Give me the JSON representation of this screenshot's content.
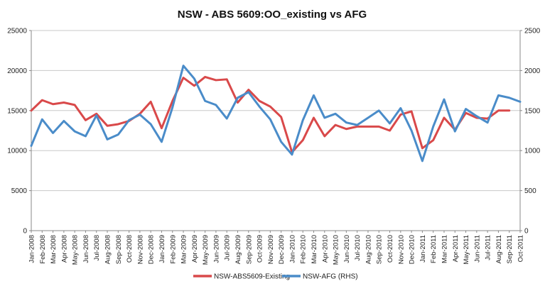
{
  "chart_data": {
    "type": "line",
    "title": "NSW - ABS 5609:OO_existing vs AFG",
    "xlabel": "",
    "ylabel": "",
    "grid": true,
    "legend_position": "bottom",
    "y_left": {
      "min": 0,
      "max": 25000,
      "ticks": [
        "0",
        "5000",
        "10000",
        "15000",
        "20000",
        "25000"
      ]
    },
    "y_right": {
      "min": 0,
      "max": 2500,
      "ticks": [
        "0",
        "500",
        "1000",
        "1500",
        "2000",
        "2500"
      ]
    },
    "categories": [
      "Jan-2008",
      "Feb-2008",
      "Mar-2008",
      "Apr-2008",
      "May-2008",
      "Jun-2008",
      "Jul-2008",
      "Aug-2008",
      "Sep-2008",
      "Oct-2008",
      "Nov-2008",
      "Dec-2008",
      "Jan-2009",
      "Feb-2009",
      "Mar-2009",
      "Apr-2009",
      "May-2009",
      "Jun-2009",
      "Jul-2009",
      "Aug-2009",
      "Sep-2009",
      "Oct-2009",
      "Nov-2009",
      "Dec-2009",
      "Jan-2010",
      "Feb-2010",
      "Mar-2010",
      "Apr-2010",
      "May-2010",
      "Jun-2010",
      "Jul-2010",
      "Aug-2010",
      "Sep-2010",
      "Oct-2010",
      "Nov-2010",
      "Dec-2010",
      "Jan-2011",
      "Feb-2011",
      "Mar-2011",
      "Apr-2011",
      "May-2011",
      "Jun-2011",
      "Jul-2011",
      "Aug-2011",
      "Sep-2011",
      "Oct-2011"
    ],
    "series": [
      {
        "name": "NSW-ABS5609-Existing",
        "axis": "left",
        "color": "#d9494a",
        "values": [
          15000,
          16300,
          15800,
          16000,
          15700,
          13800,
          14600,
          13100,
          13300,
          13700,
          14600,
          16100,
          12800,
          16200,
          19100,
          18100,
          19200,
          18800,
          18900,
          16000,
          17600,
          16200,
          15500,
          14200,
          9800,
          11300,
          14100,
          11800,
          13200,
          12700,
          13000,
          13000,
          13000,
          12500,
          14500,
          14900,
          10300,
          11300,
          14100,
          12600,
          14700,
          14100,
          14000,
          15000,
          15000,
          null
        ]
      },
      {
        "name": "NSW-AFG (RHS)",
        "axis": "right",
        "color": "#4a8cc9",
        "values": [
          1060,
          1390,
          1220,
          1370,
          1240,
          1180,
          1440,
          1140,
          1200,
          1380,
          1450,
          1330,
          1110,
          1540,
          2060,
          1900,
          1620,
          1570,
          1400,
          1660,
          1730,
          1550,
          1390,
          1110,
          950,
          1380,
          1690,
          1410,
          1460,
          1350,
          1320,
          1410,
          1500,
          1340,
          1530,
          1250,
          870,
          1300,
          1640,
          1240,
          1520,
          1430,
          1350,
          1690,
          1660,
          1610
        ]
      }
    ]
  }
}
